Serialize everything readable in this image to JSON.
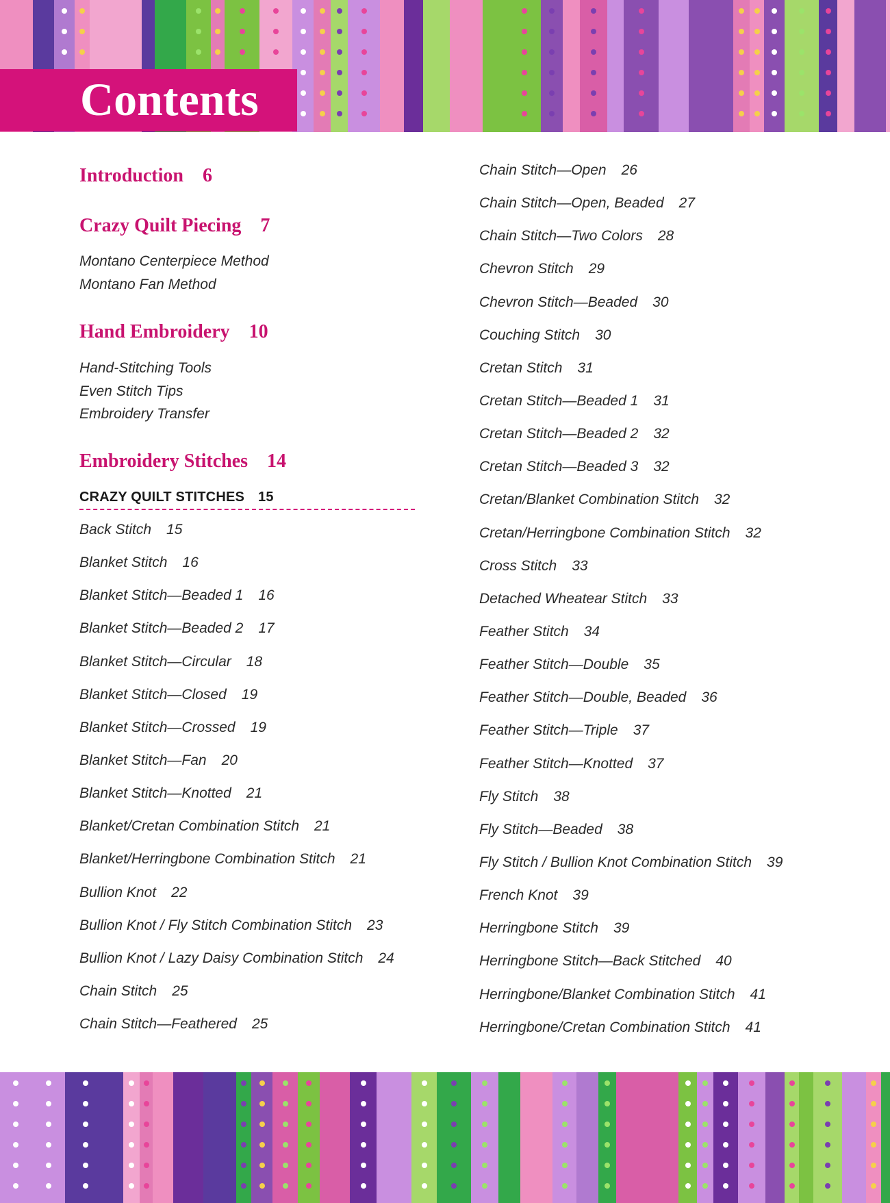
{
  "header": {
    "title": "Contents"
  },
  "colors": {
    "accent": "#d4127a",
    "heading": "#c8136f",
    "fabric": [
      "#8a4fb0",
      "#6b2e9a",
      "#e37bb5",
      "#f2a6cf",
      "#7cc242",
      "#33a84a",
      "#b07ad0",
      "#d95ea7",
      "#a6d86a",
      "#c98fe0",
      "#5a3a9e",
      "#ef8fc0"
    ]
  },
  "left": {
    "sections": [
      {
        "title": "Introduction",
        "page": "6",
        "items": []
      },
      {
        "title": "Crazy Quilt Piecing",
        "page": "7",
        "items": [
          "Montano Centerpiece Method",
          "Montano Fan Method"
        ]
      },
      {
        "title": "Hand Embroidery",
        "page": "10",
        "items": [
          "Hand-Stitching Tools",
          "Even Stitch Tips",
          "Embroidery Transfer"
        ]
      },
      {
        "title": "Embroidery Stitches",
        "page": "14",
        "items": []
      }
    ],
    "subsection": {
      "title": "CRAZY QUILT STITCHES",
      "page": "15"
    },
    "entries": [
      {
        "title": "Back Stitch",
        "page": "15"
      },
      {
        "title": "Blanket Stitch",
        "page": "16"
      },
      {
        "title": "Blanket Stitch—Beaded 1",
        "page": "16"
      },
      {
        "title": "Blanket Stitch—Beaded 2",
        "page": "17"
      },
      {
        "title": "Blanket Stitch—Circular",
        "page": "18"
      },
      {
        "title": "Blanket Stitch—Closed",
        "page": "19"
      },
      {
        "title": "Blanket Stitch—Crossed",
        "page": "19"
      },
      {
        "title": "Blanket Stitch—Fan",
        "page": "20"
      },
      {
        "title": "Blanket Stitch—Knotted",
        "page": "21"
      },
      {
        "title": "Blanket/Cretan Combination Stitch",
        "page": "21"
      },
      {
        "title": "Blanket/Herringbone Combination Stitch",
        "page": "21"
      },
      {
        "title": "Bullion Knot",
        "page": "22"
      },
      {
        "title": "Bullion Knot / Fly Stitch Combination Stitch",
        "page": "23"
      },
      {
        "title": "Bullion Knot / Lazy Daisy Combination Stitch",
        "page": "24"
      },
      {
        "title": "Chain Stitch",
        "page": "25"
      },
      {
        "title": "Chain Stitch—Feathered",
        "page": "25"
      }
    ]
  },
  "right": {
    "entries": [
      {
        "title": "Chain Stitch—Open",
        "page": "26"
      },
      {
        "title": "Chain Stitch—Open, Beaded",
        "page": "27"
      },
      {
        "title": "Chain Stitch—Two Colors",
        "page": "28"
      },
      {
        "title": "Chevron Stitch",
        "page": "29"
      },
      {
        "title": "Chevron Stitch—Beaded",
        "page": "30"
      },
      {
        "title": "Couching Stitch",
        "page": "30"
      },
      {
        "title": "Cretan Stitch",
        "page": "31"
      },
      {
        "title": "Cretan Stitch—Beaded 1",
        "page": "31"
      },
      {
        "title": "Cretan Stitch—Beaded 2",
        "page": "32"
      },
      {
        "title": "Cretan Stitch—Beaded 3",
        "page": "32"
      },
      {
        "title": "Cretan/Blanket Combination Stitch",
        "page": "32"
      },
      {
        "title": "Cretan/Herringbone Combination Stitch",
        "page": "32"
      },
      {
        "title": "Cross Stitch",
        "page": "33"
      },
      {
        "title": "Detached Wheatear Stitch",
        "page": "33"
      },
      {
        "title": "Feather Stitch",
        "page": "34"
      },
      {
        "title": "Feather Stitch—Double",
        "page": "35"
      },
      {
        "title": "Feather Stitch—Double, Beaded",
        "page": "36"
      },
      {
        "title": "Feather Stitch—Triple",
        "page": "37"
      },
      {
        "title": "Feather Stitch—Knotted",
        "page": "37"
      },
      {
        "title": "Fly Stitch",
        "page": "38"
      },
      {
        "title": "Fly Stitch—Beaded",
        "page": "38"
      },
      {
        "title": "Fly Stitch / Bullion Knot Combination Stitch",
        "page": "39"
      },
      {
        "title": "French Knot",
        "page": "39"
      },
      {
        "title": "Herringbone Stitch",
        "page": "39"
      },
      {
        "title": "Herringbone Stitch—Back Stitched",
        "page": "40"
      },
      {
        "title": "Herringbone/Blanket Combination Stitch",
        "page": "41"
      },
      {
        "title": "Herringbone/Cretan Combination Stitch",
        "page": "41"
      }
    ]
  }
}
